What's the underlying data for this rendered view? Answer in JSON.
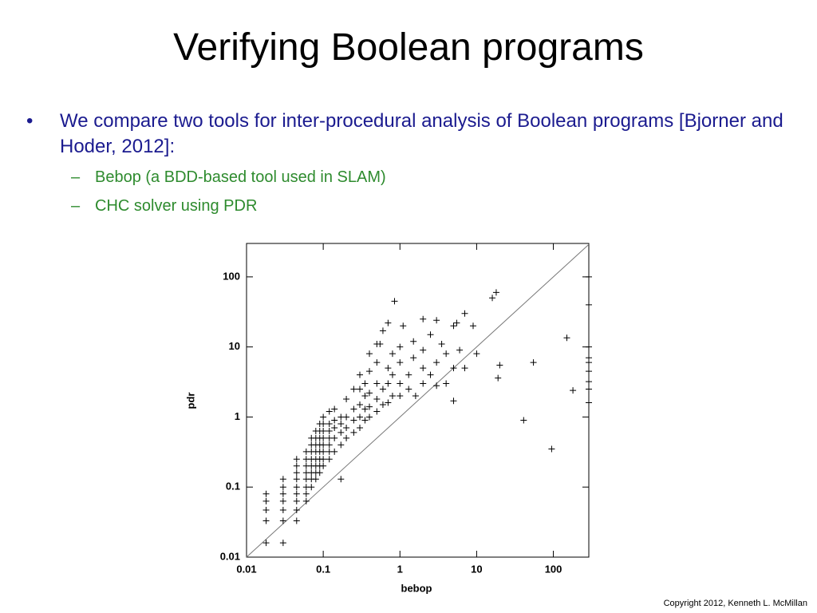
{
  "title": "Verifying Boolean programs",
  "bullets": [
    {
      "text": "We compare two tools for inter-procedural analysis of Boolean programs [Bjorner and Hoder, 2012]:",
      "subs": [
        "Bebop (a BDD-based tool used in SLAM)",
        "CHC solver using PDR"
      ]
    }
  ],
  "copyright": "Copyright 2012, Kenneth L. McMillan",
  "chart_data": {
    "type": "scatter",
    "x_label": "bebop",
    "y_label": "pdr",
    "x": [
      0.018,
      0.018,
      0.018,
      0.018,
      0.018,
      0.03,
      0.03,
      0.03,
      0.03,
      0.03,
      0.03,
      0.03,
      0.045,
      0.045,
      0.045,
      0.045,
      0.045,
      0.045,
      0.045,
      0.045,
      0.045,
      0.06,
      0.06,
      0.06,
      0.06,
      0.06,
      0.06,
      0.06,
      0.06,
      0.07,
      0.07,
      0.07,
      0.07,
      0.07,
      0.07,
      0.07,
      0.07,
      0.08,
      0.08,
      0.08,
      0.08,
      0.08,
      0.08,
      0.08,
      0.08,
      0.09,
      0.09,
      0.09,
      0.09,
      0.09,
      0.09,
      0.09,
      0.09,
      0.1,
      0.1,
      0.1,
      0.1,
      0.1,
      0.1,
      0.1,
      0.1,
      0.12,
      0.12,
      0.12,
      0.12,
      0.12,
      0.12,
      0.12,
      0.14,
      0.14,
      0.14,
      0.14,
      0.14,
      0.17,
      0.17,
      0.17,
      0.17,
      0.17,
      0.2,
      0.2,
      0.2,
      0.2,
      0.25,
      0.25,
      0.25,
      0.25,
      0.3,
      0.3,
      0.3,
      0.3,
      0.3,
      0.35,
      0.35,
      0.35,
      0.35,
      0.4,
      0.4,
      0.4,
      0.4,
      0.4,
      0.5,
      0.5,
      0.5,
      0.5,
      0.5,
      0.55,
      0.6,
      0.6,
      0.6,
      0.7,
      0.7,
      0.7,
      0.7,
      0.85,
      0.8,
      0.8,
      0.8,
      1,
      1,
      1,
      1,
      1.1,
      1.3,
      1.3,
      1.5,
      1.5,
      1.6,
      2,
      2,
      2,
      2,
      2.5,
      2.5,
      3,
      3,
      3,
      3.5,
      4,
      4,
      5,
      5,
      5,
      5.5,
      6,
      7,
      7,
      9,
      10,
      16,
      18,
      19,
      20,
      41,
      55,
      95,
      150,
      180,
      290,
      290,
      290,
      290,
      290,
      290,
      290,
      290,
      290
    ],
    "values": [
      0.016,
      0.033,
      0.047,
      0.063,
      0.08,
      0.016,
      0.033,
      0.047,
      0.063,
      0.08,
      0.1,
      0.13,
      0.033,
      0.047,
      0.063,
      0.08,
      0.1,
      0.13,
      0.16,
      0.2,
      0.25,
      0.063,
      0.08,
      0.1,
      0.13,
      0.16,
      0.2,
      0.25,
      0.32,
      0.1,
      0.13,
      0.16,
      0.2,
      0.25,
      0.32,
      0.4,
      0.5,
      0.13,
      0.16,
      0.2,
      0.25,
      0.32,
      0.4,
      0.5,
      0.63,
      0.16,
      0.2,
      0.25,
      0.32,
      0.4,
      0.5,
      0.63,
      0.8,
      0.2,
      0.25,
      0.32,
      0.4,
      0.5,
      0.63,
      0.8,
      1,
      0.25,
      0.32,
      0.4,
      0.5,
      0.63,
      0.8,
      1.2,
      0.32,
      0.5,
      0.7,
      0.9,
      1.3,
      0.13,
      0.4,
      0.6,
      0.8,
      1,
      0.5,
      0.7,
      1,
      1.8,
      0.6,
      0.9,
      1.3,
      2.5,
      0.7,
      1,
      1.5,
      2.5,
      4,
      0.9,
      1.3,
      2,
      3,
      1,
      1.4,
      2.2,
      4.5,
      8,
      1.2,
      1.8,
      3,
      6,
      11,
      11,
      1.5,
      2.5,
      17,
      1.6,
      3,
      5,
      22,
      45,
      2,
      4,
      8,
      2,
      3,
      6,
      10,
      20,
      2.5,
      4,
      7,
      12,
      2,
      3,
      5,
      9,
      25,
      4,
      15,
      2.8,
      6,
      24,
      11,
      3,
      8,
      1.7,
      5,
      20,
      22,
      9,
      5,
      30,
      20,
      8,
      50,
      60,
      3.6,
      5.5,
      0.9,
      6,
      0.35,
      13.5,
      2.4,
      1.6,
      2.5,
      3.2,
      4.5,
      6,
      7,
      10,
      40,
      100
    ],
    "color": "#000000",
    "xlim": [
      0.01,
      290
    ],
    "ylim": [
      0.01,
      300
    ],
    "xticks": [
      0.01,
      0.1,
      1,
      10,
      100
    ],
    "yticks": [
      0.01,
      0.1,
      1,
      10,
      100
    ],
    "log_x": true,
    "log_y": true,
    "diagonal": true
  }
}
